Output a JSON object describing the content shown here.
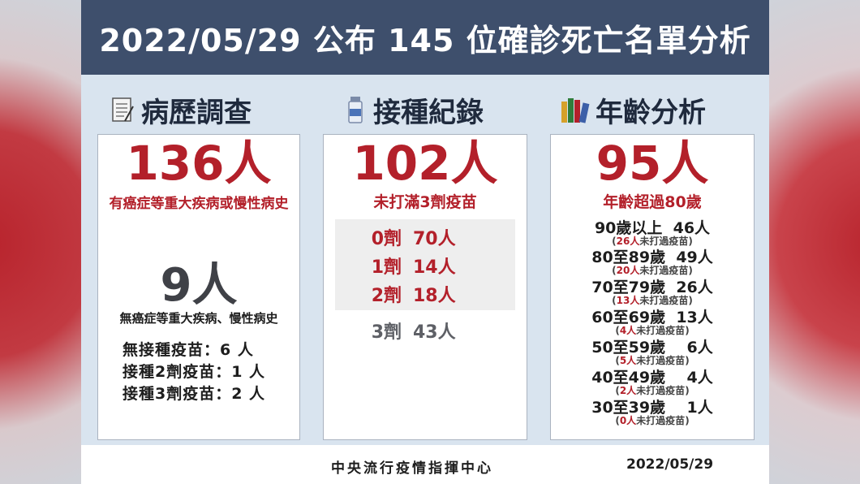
{
  "header": {
    "title": "2022/05/29 公布 145 位確診死亡名單分析"
  },
  "sections": [
    {
      "title": "病歷調查",
      "icon": "document-icon"
    },
    {
      "title": "接種紀錄",
      "icon": "vaccine-vial-icon"
    },
    {
      "title": "年齡分析",
      "icon": "books-icon"
    }
  ],
  "history": {
    "count1": "136人",
    "desc1": "有癌症等重大疾病或慢性病史",
    "count2": "9人",
    "desc2": "無癌症等重大疾病、慢性病史",
    "lines": [
      "無接種疫苗：6 人",
      "接種2劑疫苗：1 人",
      "接種3劑疫苗：2 人"
    ]
  },
  "vaccine": {
    "count": "102人",
    "desc": "未打滿3劑疫苗",
    "doses": [
      {
        "dose": "0劑",
        "num": "70人",
        "highlight": true
      },
      {
        "dose": "1劑",
        "num": "14人",
        "highlight": true
      },
      {
        "dose": "2劑",
        "num": "18人",
        "highlight": true
      },
      {
        "dose": "3劑",
        "num": "43人",
        "highlight": false
      }
    ]
  },
  "age": {
    "count": "95人",
    "desc": "年齡超過80歲",
    "note_suffix": "未打過疫苗",
    "groups": [
      {
        "label": "90歲以上  46人",
        "unvax": "26人"
      },
      {
        "label": "80至89歲  49人",
        "unvax": "20人"
      },
      {
        "label": "70至79歲  26人",
        "unvax": "13人"
      },
      {
        "label": "60至69歲  13人",
        "unvax": "4人"
      },
      {
        "label": "50至59歲    6人",
        "unvax": "5人"
      },
      {
        "label": "40至49歲    4人",
        "unvax": "2人"
      },
      {
        "label": "30至39歲    1人",
        "unvax": "0人"
      }
    ]
  },
  "footer": {
    "org": "中央流行疫情指揮中心",
    "date": "2022/05/29"
  },
  "colors": {
    "header": "#3e4f6c",
    "accent_red": "#b3202a",
    "panel_bg": "#d9e4ef"
  }
}
